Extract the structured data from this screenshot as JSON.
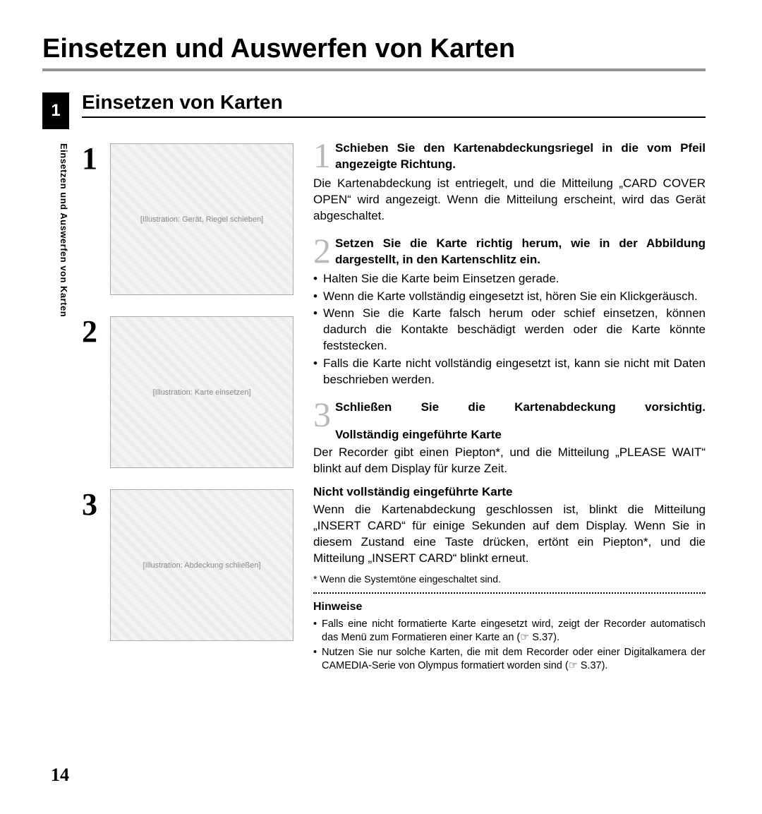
{
  "title": "Einsetzen und Auswerfen von Karten",
  "chapter_number": "1",
  "subtitle": "Einsetzen von Karten",
  "side_label": "Einsetzen und Auswerfen von Karten",
  "page_number": "14",
  "figures": {
    "fig1_num": "1",
    "fig2_num": "2",
    "fig3_num": "3",
    "placeholder1": "[Illustration: Gerät, Riegel schieben]",
    "placeholder2": "[Illustration: Karte einsetzen]",
    "placeholder3": "[Illustration: Abdeckung schließen]"
  },
  "steps": {
    "s1": {
      "num": "1",
      "head": "Schieben Sie den Kartenabdeckungsriegel in die vom Pfeil angezeigte Richtung.",
      "body": "Die Kartenabdeckung ist entriegelt, und die Mitteilung „CARD COVER OPEN“ wird angezeigt. Wenn die Mitteilung erscheint, wird das Gerät abgeschaltet."
    },
    "s2": {
      "num": "2",
      "head": "Setzen Sie die Karte richtig herum, wie in der Abbildung dargestellt, in den Kartenschlitz ein.",
      "b1": "Halten Sie die Karte beim Einsetzen gerade.",
      "b2": "Wenn die Karte vollständig eingesetzt ist, hören Sie ein Klickgeräusch.",
      "b3": "Wenn Sie die Karte falsch herum oder schief einsetzen, können dadurch die Kontakte beschädigt werden oder die Karte könnte feststecken.",
      "b4": "Falls die Karte nicht vollständig eingesetzt ist, kann sie nicht mit Daten beschrieben werden."
    },
    "s3": {
      "num": "3",
      "head": "Schließen Sie die Kartenabdeckung vorsichtig."
    }
  },
  "full": {
    "head": "Vollständig eingeführte Karte",
    "body": "Der Recorder gibt einen Piepton*, und die Mitteilung „PLEASE WAIT“ blinkt auf dem Display für kurze Zeit."
  },
  "notfull": {
    "head": "Nicht vollständig eingeführte Karte",
    "body": "Wenn die Kartenabdeckung geschlossen ist, blinkt die Mitteilung „INSERT CARD“ für einige Sekunden auf dem Display. Wenn Sie in diesem Zustand eine Taste drücken, ertönt ein Piepton*, und die Mitteilung „INSERT CARD“ blinkt erneut."
  },
  "footnote": "* Wenn die Systemtöne eingeschaltet sind.",
  "notes": {
    "head": "Hinweise",
    "n1": "Falls eine nicht formatierte Karte eingesetzt wird, zeigt der Recorder automatisch das Menü zum Formatieren einer Karte an (☞ S.37).",
    "n2": "Nutzen Sie nur solche Karten, die mit dem Recorder oder einer Digitalkamera der CAMEDIA-Serie von Olympus formatiert worden sind (☞ S.37)."
  }
}
